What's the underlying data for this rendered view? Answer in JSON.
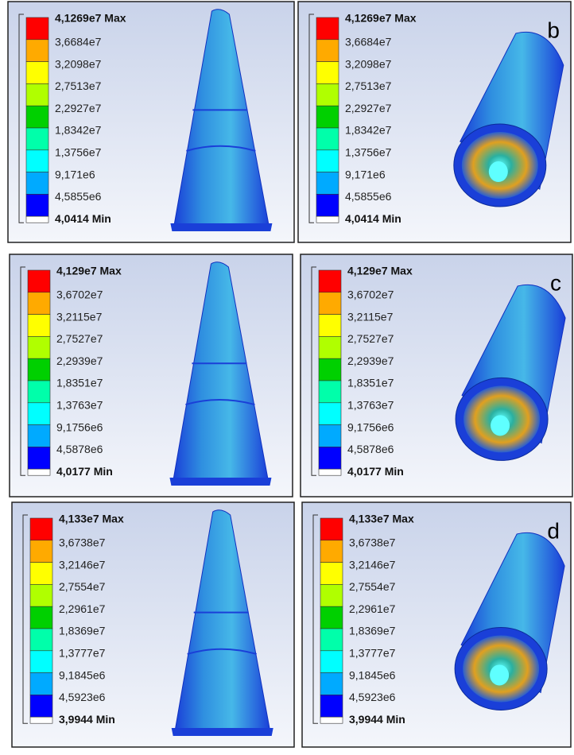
{
  "rows": [
    {
      "letter": "b",
      "legend": [
        "4,1269e7 Max",
        "3,6684e7",
        "3,2098e7",
        "2,7513e7",
        "2,2927e7",
        "1,8342e7",
        "1,3756e7",
        "9,171e6",
        "4,5855e6",
        "4,0414 Min"
      ]
    },
    {
      "letter": "c",
      "legend": [
        "4,129e7 Max",
        "3,6702e7",
        "3,2115e7",
        "2,7527e7",
        "2,2939e7",
        "1,8351e7",
        "1,3763e7",
        "9,1756e6",
        "4,5878e6",
        "4,0177 Min"
      ]
    },
    {
      "letter": "d",
      "legend": [
        "4,133e7 Max",
        "3,6738e7",
        "3,2146e7",
        "2,7554e7",
        "2,2961e7",
        "1,8369e7",
        "1,3777e7",
        "9,1845e6",
        "4,5923e6",
        "3,9944 Min"
      ]
    }
  ]
}
